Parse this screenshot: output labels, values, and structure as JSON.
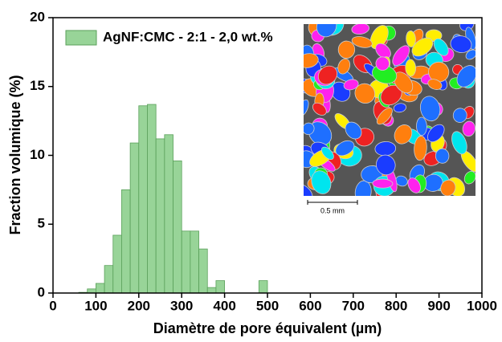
{
  "chart_data": {
    "type": "histogram",
    "xlabel": "Diamètre de pore équivalent (µm)",
    "ylabel": "Fraction volumique (%)",
    "inset_scale_label": "0.5 mm",
    "bins": [
      60,
      80,
      100,
      120,
      140,
      160,
      180,
      200,
      220,
      240,
      260,
      280,
      300,
      320,
      340,
      360,
      380,
      400,
      420,
      440,
      460,
      480,
      500
    ],
    "series": [
      {
        "name": "AgNF:CMC - 2:1 - 2,0 wt.%",
        "color": "#98d498",
        "counts": [
          0.05,
          0.3,
          0.7,
          2.0,
          4.2,
          7.5,
          10.9,
          13.6,
          13.7,
          11.2,
          11.5,
          9.6,
          4.5,
          4.5,
          3.2,
          0.4,
          0.9,
          0,
          0,
          0,
          0,
          0.9
        ]
      }
    ],
    "xlim": [
      0,
      1000
    ],
    "xticks": [
      0,
      100,
      200,
      300,
      400,
      500,
      600,
      700,
      800,
      900,
      1000
    ],
    "ylim": [
      0,
      20
    ],
    "yticks": [
      0,
      5,
      10,
      15,
      20
    ],
    "legend": "top-left"
  }
}
